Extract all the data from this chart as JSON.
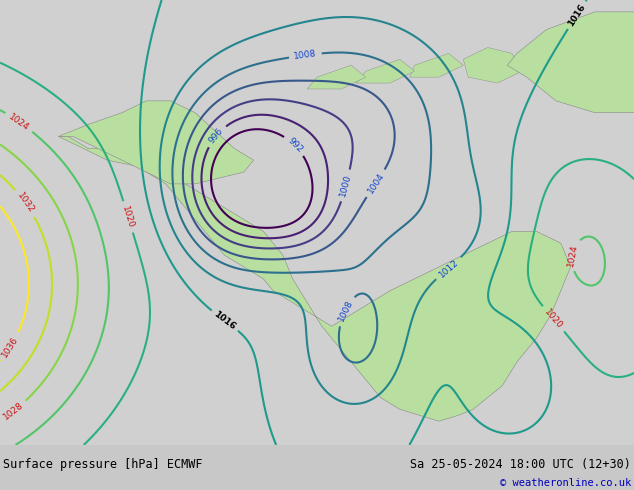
{
  "title_left": "Surface pressure [hPa] ECMWF",
  "title_right": "Sa 25-05-2024 18:00 UTC (12+30)",
  "copyright": "© weatheronline.co.uk",
  "bg_color": "#c8c8c8",
  "land_color": "#b8dfa0",
  "map_bg": "#d0d0d0",
  "bottom_bar_color": "#d8d8d8",
  "figsize": [
    6.34,
    4.9
  ],
  "dpi": 100
}
